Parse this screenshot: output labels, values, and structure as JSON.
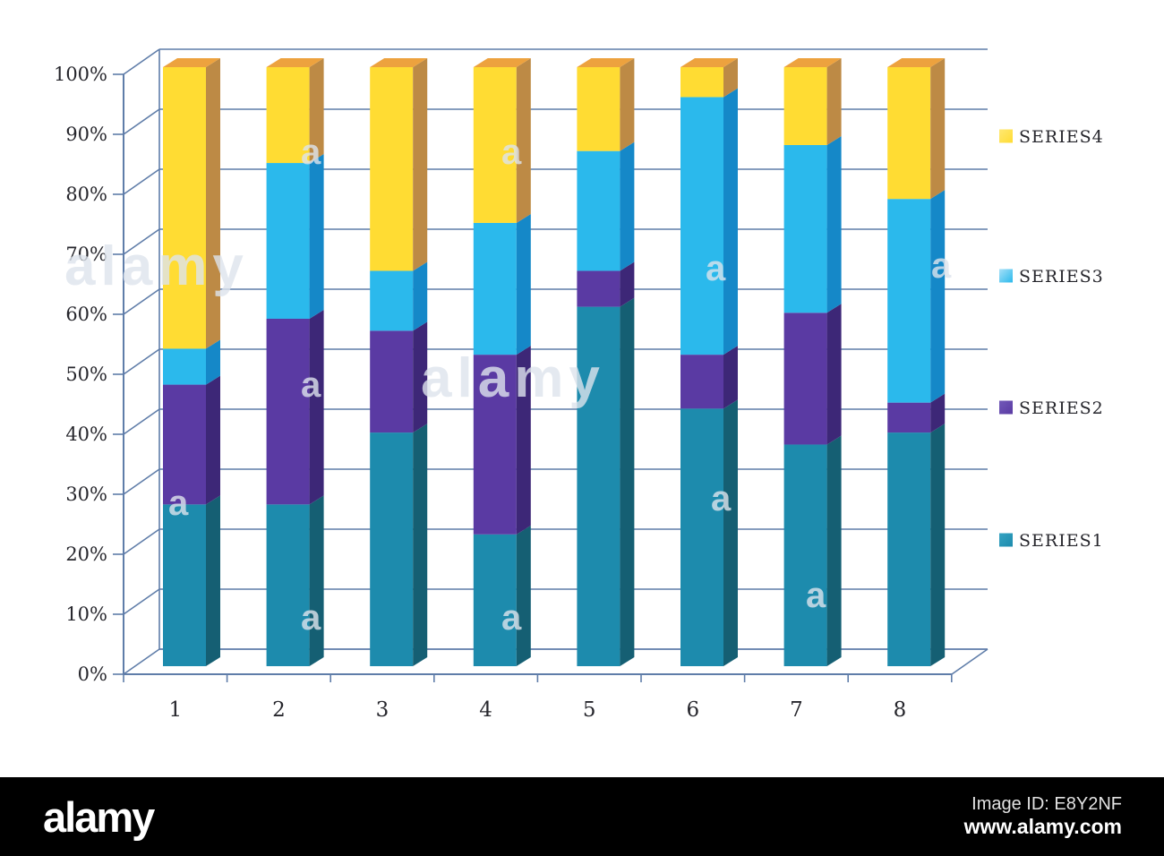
{
  "watermark": {
    "logo": "alamy",
    "image_id": "Image ID: E8Y2NF",
    "url": "www.alamy.com",
    "ghost_word": "alamy",
    "tile_letter": "a"
  },
  "chart_data": {
    "type": "bar",
    "subtype": "3d-stacked-percent-column",
    "title": "",
    "xlabel": "",
    "ylabel": "",
    "categories": [
      "1",
      "2",
      "3",
      "4",
      "5",
      "6",
      "7",
      "8"
    ],
    "series": [
      {
        "name": "SERIES1",
        "color": "#1D8BAD",
        "side_color": "#155F73",
        "legend_light": "#35A3C2",
        "values": [
          27,
          27,
          39,
          22,
          60,
          43,
          37,
          39
        ]
      },
      {
        "name": "SERIES2",
        "color": "#5A3AA3",
        "side_color": "#3D2777",
        "legend_light": "#7158B8",
        "values": [
          20,
          31,
          17,
          30,
          6,
          9,
          22,
          5
        ]
      },
      {
        "name": "SERIES3",
        "color": "#2BB9EC",
        "side_color": "#1588C8",
        "legend_light": "#A6E0F8",
        "values": [
          6,
          26,
          10,
          22,
          20,
          43,
          28,
          34
        ]
      },
      {
        "name": "SERIES4",
        "color": "#FFDC33",
        "side_color": "#BD8A45",
        "top_color": "#EDA23E",
        "legend_light": "#FFE873",
        "values": [
          47,
          16,
          34,
          26,
          14,
          5,
          13,
          22
        ]
      }
    ],
    "y_ticks": [
      "0%",
      "10%",
      "20%",
      "30%",
      "40%",
      "50%",
      "60%",
      "70%",
      "80%",
      "90%",
      "100%"
    ],
    "ylim": [
      0,
      100
    ],
    "grid": true,
    "legend_position": "right",
    "legend_order": [
      "SERIES4",
      "SERIES3",
      "SERIES2",
      "SERIES1"
    ]
  },
  "colors": {
    "grid": "#5F7DA9",
    "label": "#26262C",
    "background": "#FFFFFF",
    "watermark_bar": "#000000",
    "watermark_tint": "rgba(221,228,236,0.8)"
  }
}
